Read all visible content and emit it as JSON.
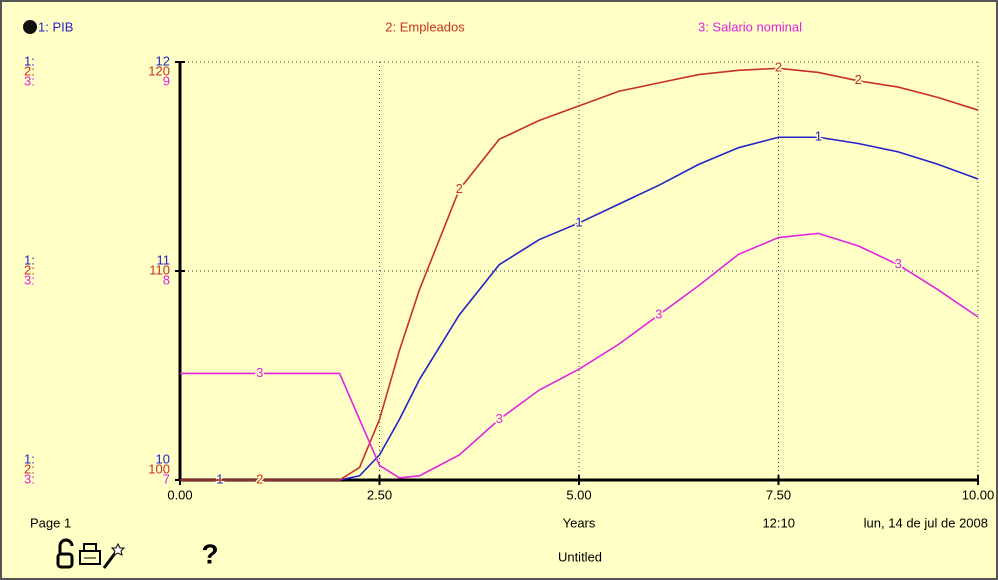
{
  "chart_data": {
    "type": "line",
    "legend_labels": [
      "1: PIB",
      "2: Empleados",
      "3: Salario nominal"
    ],
    "x": [
      0,
      0.5,
      1,
      1.5,
      2,
      2.25,
      2.5,
      2.75,
      3,
      3.5,
      4,
      4.5,
      5,
      5.5,
      6,
      6.5,
      7,
      7.5,
      8,
      8.5,
      9,
      9.5,
      10
    ],
    "xlim": [
      0,
      10
    ],
    "xticks": [
      {
        "value": 0,
        "label": "0.00"
      },
      {
        "value": 2.5,
        "label": "2.50"
      },
      {
        "value": 5,
        "label": "5.00"
      },
      {
        "value": 7.5,
        "label": "7.50"
      },
      {
        "value": 10,
        "label": "10.00"
      }
    ],
    "xlabel": "Years",
    "grid": true,
    "series": [
      {
        "name": "PIB",
        "axis_prefix": "1:",
        "marker": "1",
        "color": "#2424c8",
        "ylim": [
          10,
          12
        ],
        "yticks": [
          10,
          11,
          12
        ],
        "values": [
          10,
          10,
          10,
          10,
          10,
          10.02,
          10.12,
          10.29,
          10.48,
          10.79,
          11.03,
          11.15,
          11.23,
          11.32,
          11.41,
          11.51,
          11.59,
          11.64,
          11.64,
          11.61,
          11.57,
          11.51,
          11.44
        ]
      },
      {
        "name": "Empleados",
        "axis_prefix": "2:",
        "marker": "2",
        "color": "#c83220",
        "ylim": [
          100,
          120
        ],
        "yticks": [
          100,
          110,
          120
        ],
        "values": [
          100,
          100,
          100,
          100,
          100,
          100.6,
          102.9,
          106.2,
          109.1,
          113.9,
          116.3,
          117.2,
          117.9,
          118.6,
          119.0,
          119.4,
          119.6,
          119.7,
          119.5,
          119.1,
          118.8,
          118.3,
          117.7
        ]
      },
      {
        "name": "Salario nominal",
        "axis_prefix": "3:",
        "marker": "3",
        "color": "#e024e0",
        "ylim": [
          7,
          9
        ],
        "yticks": [
          7,
          8,
          9
        ],
        "values": [
          7.51,
          7.51,
          7.51,
          7.51,
          7.51,
          7.29,
          7.07,
          7.01,
          7.02,
          7.12,
          7.29,
          7.43,
          7.53,
          7.65,
          7.79,
          7.93,
          8.08,
          8.16,
          8.18,
          8.12,
          8.03,
          7.91,
          7.78
        ]
      }
    ]
  },
  "footer": {
    "page": "Page 1",
    "time": "12:10",
    "date": "lun, 14 de jul de 2008",
    "document": "Untitled",
    "help": "?"
  }
}
